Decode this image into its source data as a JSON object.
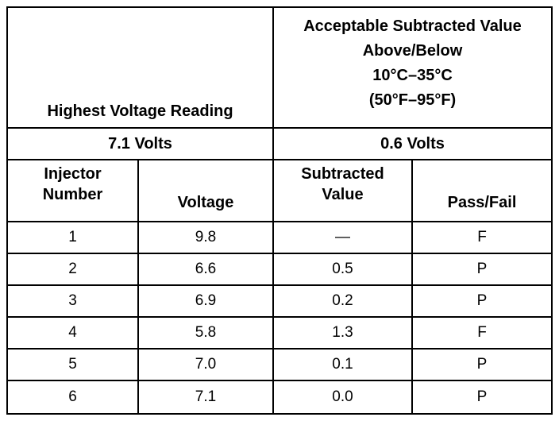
{
  "header": {
    "reading_label": "Highest Voltage Reading",
    "acceptable_label": "Acceptable Subtracted Value Above/Below",
    "range_celsius": "10°C–35°C",
    "range_fahrenheit": "(50°F–95°F)",
    "highest_voltage": "7.1 Volts",
    "acceptable_value": "0.6 Volts"
  },
  "table": {
    "columns": [
      "Injector Number",
      "Voltage",
      "Subtracted Value",
      "Pass/Fail"
    ],
    "rows": [
      [
        "1",
        "9.8",
        "—",
        "F"
      ],
      [
        "2",
        "6.6",
        "0.5",
        "P"
      ],
      [
        "3",
        "6.9",
        "0.2",
        "P"
      ],
      [
        "4",
        "5.8",
        "1.3",
        "F"
      ],
      [
        "5",
        "7.0",
        "0.1",
        "P"
      ],
      [
        "6",
        "7.1",
        "0.0",
        "P"
      ]
    ]
  }
}
